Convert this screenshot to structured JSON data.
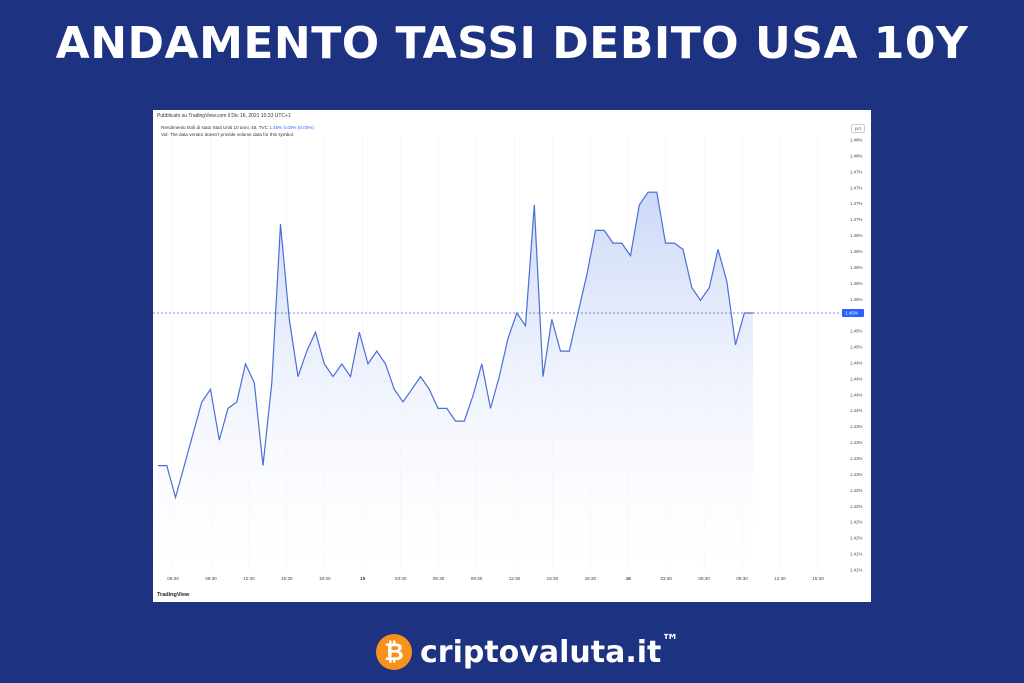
{
  "headline": "ANDAMENTO TASSI DEBITO USA 10Y",
  "panel": {
    "published": "Pubblicato su TradingView.com il Dic 16, 2021 10:33 UTC+1",
    "legend_name": "Rendimento titoli di stato Stati Uniti 10 anni, 45, TVC",
    "legend_values": "1.45% 0.00% (0.00%)",
    "legend_vol": "Vol: The data vendor doesn't provide volume data for this symbol.",
    "pct_button": "pct",
    "tv_logo": "TradingView"
  },
  "footer": {
    "brand": "criptovaluta.it",
    "tm": "™",
    "coin_symbol": "₿"
  },
  "colors": {
    "background": "#1e3282",
    "line": "#4a6fd6",
    "fill_top": "#c9d6f7",
    "last_price_label": "#2962ff"
  },
  "chart_data": {
    "type": "area",
    "title": "",
    "xlabel": "",
    "ylabel": "",
    "ylim": [
      1.41,
      1.48
    ],
    "last_value_label": "1.45%",
    "x_ticks": [
      "06:30",
      "09:30",
      "12:30",
      "15:30",
      "18:30",
      "15",
      "03:30",
      "06:30",
      "09:30",
      "12:30",
      "15:30",
      "18:30",
      "16",
      "03:30",
      "06:30",
      "09:30",
      "12:30",
      "15:30"
    ],
    "y_ticks": [
      "1.48%",
      "1.48%",
      "1.47%",
      "1.47%",
      "1.47%",
      "1.47%",
      "1.46%",
      "1.46%",
      "1.46%",
      "1.46%",
      "1.45%",
      "1.45%",
      "1.45%",
      "1.45%",
      "1.44%",
      "1.44%",
      "1.44%",
      "1.44%",
      "1.43%",
      "1.43%",
      "1.43%",
      "1.43%",
      "1.42%",
      "1.42%",
      "1.42%",
      "1.42%",
      "1.41%",
      "1.41%"
    ],
    "series": [
      {
        "values": [
          1.428,
          1.428,
          1.423,
          1.428,
          1.433,
          1.438,
          1.44,
          1.432,
          1.437,
          1.438,
          1.444,
          1.441,
          1.428,
          1.441,
          1.466,
          1.451,
          1.442,
          1.446,
          1.449,
          1.444,
          1.442,
          1.444,
          1.442,
          1.449,
          1.444,
          1.446,
          1.444,
          1.44,
          1.438,
          1.44,
          1.442,
          1.44,
          1.437,
          1.437,
          1.435,
          1.435,
          1.439,
          1.444,
          1.437,
          1.442,
          1.448,
          1.452,
          1.45,
          1.469,
          1.442,
          1.451,
          1.446,
          1.446,
          1.452,
          1.458,
          1.465,
          1.465,
          1.463,
          1.463,
          1.461,
          1.469,
          1.471,
          1.471,
          1.463,
          1.463,
          1.462,
          1.456,
          1.454,
          1.456,
          1.462,
          1.457,
          1.447,
          1.452,
          1.452
        ]
      }
    ]
  }
}
